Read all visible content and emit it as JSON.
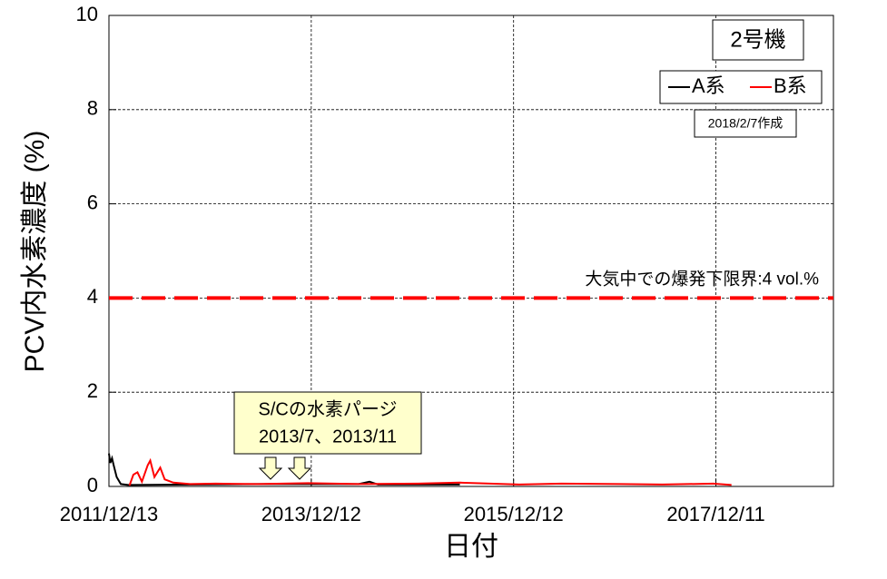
{
  "chart_data": {
    "type": "line",
    "y_label": "PCV内水素濃度 (%)",
    "x_label": "日付",
    "ylim": [
      0,
      10
    ],
    "yticks": [
      0,
      2,
      4,
      6,
      8,
      10
    ],
    "xlim": [
      "2011/12/13",
      "2019/02/08"
    ],
    "xticks": [
      "2011/12/13",
      "2013/12/12",
      "2015/12/12",
      "2017/12/11"
    ],
    "grid": true,
    "unit_box": "2号機",
    "created": "2018/2/7作成",
    "legend": "upper right",
    "reference_line": {
      "value": 4,
      "label": "大気中での爆発下限界:4 vol.%",
      "color": "#ff0000"
    },
    "callout": [
      "S/Cの水素パージ",
      "2013/7、2013/11"
    ],
    "series": [
      {
        "name": "A系",
        "color": "#000000",
        "x": [
          "2011/12/13",
          "2011/12/18",
          "2011/12/24",
          "2011/12/30",
          "2012/01/10",
          "2012/01/25",
          "2012/02/20",
          "2012/03/01",
          "2013/06/01",
          "2014/06/01",
          "2014/07/10",
          "2014/08/10",
          "2015/06/01"
        ],
        "values": [
          0.7,
          0.5,
          0.6,
          0.45,
          0.2,
          0.05,
          0.03,
          0.03,
          0.05,
          0.05,
          0.1,
          0.04,
          0.04
        ]
      },
      {
        "name": "B系",
        "color": "#ff0000",
        "x": [
          "2012/02/25",
          "2012/03/10",
          "2012/03/25",
          "2012/04/10",
          "2012/05/01",
          "2012/05/10",
          "2012/05/25",
          "2012/06/15",
          "2012/07/01",
          "2012/08/01",
          "2012/10/01",
          "2013/01/01",
          "2013/06/01",
          "2013/12/01",
          "2014/06/01",
          "2015/01/01",
          "2015/06/01",
          "2016/01/01",
          "2016/06/01",
          "2017/01/01",
          "2017/06/01",
          "2017/12/01",
          "2018/02/05"
        ],
        "values": [
          0.02,
          0.25,
          0.3,
          0.1,
          0.45,
          0.55,
          0.2,
          0.4,
          0.15,
          0.08,
          0.05,
          0.06,
          0.05,
          0.07,
          0.05,
          0.06,
          0.08,
          0.04,
          0.06,
          0.05,
          0.04,
          0.06,
          0.03
        ]
      }
    ]
  }
}
